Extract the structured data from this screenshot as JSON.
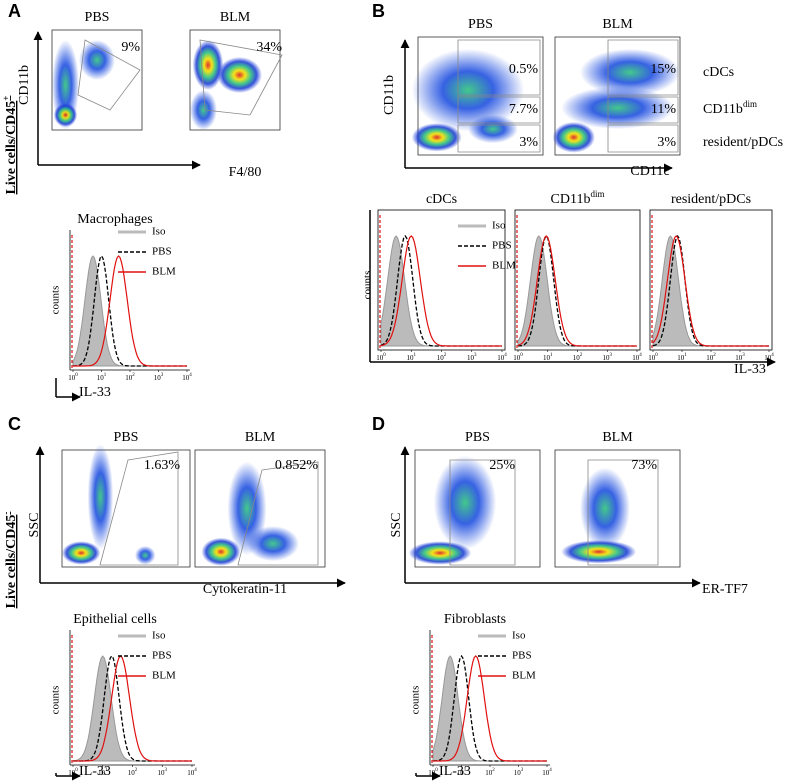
{
  "side_labels": [
    {
      "text": "Live cells/CD45",
      "sup": "+"
    },
    {
      "text": "Live cells/CD45",
      "sup": "-"
    }
  ],
  "tick_base": "10",
  "tick_exponents": [
    "0",
    "1",
    "2",
    "3",
    "4"
  ],
  "panels": [
    {
      "letter": "A",
      "conditions": [
        "PBS",
        "BLM"
      ],
      "y_axis": "CD11b",
      "x_axis": "F4/80",
      "gates": [
        [
          "9%"
        ],
        [
          "34%"
        ]
      ],
      "histograms": [
        {
          "title": "Macrophages"
        }
      ],
      "legend": [
        "Iso",
        "PBS",
        "BLM"
      ],
      "counts": "counts",
      "marker": "IL-33"
    },
    {
      "letter": "B",
      "conditions": [
        "PBS",
        "BLM"
      ],
      "y_axis": "CD11b",
      "x_axis": "CD11c",
      "gates": [
        [
          "0.5%",
          "7.7%",
          "3%"
        ],
        [
          "15%",
          "11%",
          "3%"
        ]
      ],
      "populations": [
        {
          "name": "cDCs"
        },
        {
          "name": "CD11b",
          "sup": "dim"
        },
        {
          "name": "resident/pDCs"
        }
      ],
      "histograms": [
        {
          "title": "cDCs"
        },
        {
          "title": "CD11b",
          "sup": "dim"
        },
        {
          "title": "resident/pDCs"
        }
      ],
      "legend": [
        "Iso",
        "PBS",
        "BLM"
      ],
      "counts": "counts",
      "marker": "IL-33"
    },
    {
      "letter": "C",
      "conditions": [
        "PBS",
        "BLM"
      ],
      "y_axis": "SSC",
      "x_axis": "Cytokeratin-11",
      "gates": [
        [
          "1.63%"
        ],
        [
          "0.852%"
        ]
      ],
      "histograms": [
        {
          "title": "Epithelial cells"
        }
      ],
      "legend": [
        "Iso",
        "PBS",
        "BLM"
      ],
      "counts": "counts",
      "marker": "IL-33"
    },
    {
      "letter": "D",
      "conditions": [
        "PBS",
        "BLM"
      ],
      "y_axis": "SSC",
      "x_axis": "ER-TF7",
      "gates": [
        [
          "25%"
        ],
        [
          "73%"
        ]
      ],
      "histograms": [
        {
          "title": "Fibroblasts"
        }
      ],
      "legend": [
        "Iso",
        "PBS",
        "BLM"
      ],
      "counts": "counts",
      "marker": "IL-33"
    }
  ]
}
